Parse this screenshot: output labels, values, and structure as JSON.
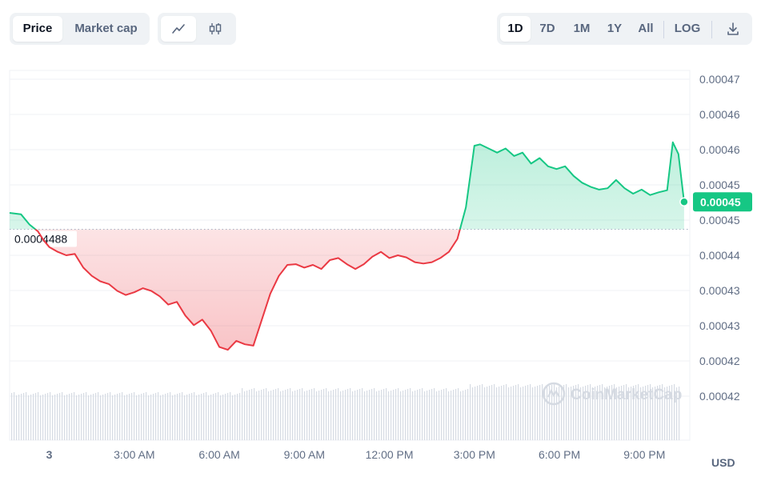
{
  "toolbar": {
    "metric_tabs": [
      {
        "label": "Price",
        "active": true
      },
      {
        "label": "Market cap",
        "active": false
      }
    ],
    "chart_type_icons": [
      {
        "icon": "line-chart-icon",
        "active": true
      },
      {
        "icon": "candlestick-icon",
        "active": false
      }
    ],
    "ranges": [
      {
        "label": "1D",
        "active": true
      },
      {
        "label": "7D",
        "active": false
      },
      {
        "label": "1M",
        "active": false
      },
      {
        "label": "1Y",
        "active": false
      },
      {
        "label": "All",
        "active": false
      }
    ],
    "log_label": "LOG",
    "download_icon": "download-icon"
  },
  "currency_label": "USD",
  "watermark": "CoinMarketCap",
  "colors": {
    "up": "#16c784",
    "down": "#ea3943",
    "grid": "#eff2f5",
    "baseline": "#a6b0c3",
    "volume": "#d6dbe3"
  },
  "chart_data": {
    "type": "line",
    "title": "",
    "xlabel": "",
    "ylabel": "",
    "x_ticks": [
      "3",
      "3:00 AM",
      "6:00 AM",
      "9:00 AM",
      "12:00 PM",
      "3:00 PM",
      "6:00 PM",
      "9:00 PM"
    ],
    "x_tick_hours": [
      0,
      3,
      6,
      9,
      12,
      15,
      18,
      21
    ],
    "x_range_hours": [
      -1.4,
      22.6
    ],
    "y_ticks": [
      "0.00047",
      "0.00046",
      "0.00046",
      "0.00045",
      "0.00045",
      "0.00044",
      "0.00043",
      "0.00043",
      "0.00042",
      "0.00042"
    ],
    "ylim": [
      0.000418,
      0.000472
    ],
    "baseline_value": 0.0004488,
    "baseline_label": "0.0004488",
    "current_price_label": "0.00045",
    "current_price": 0.0004528,
    "series": [
      {
        "x": [
          -1.4,
          -1.0,
          -0.7,
          -0.4,
          -0.2,
          0.0,
          0.3,
          0.6,
          0.9,
          1.2,
          1.5,
          1.8,
          2.1,
          2.4,
          2.7,
          3.0,
          3.3,
          3.6,
          3.9,
          4.2,
          4.5,
          4.8,
          5.1,
          5.4,
          5.7,
          6.0,
          6.3,
          6.6,
          6.9,
          7.2,
          7.5,
          7.8,
          8.1,
          8.4,
          8.7,
          9.0,
          9.3,
          9.6,
          9.9,
          10.2,
          10.5,
          10.8,
          11.1,
          11.4,
          11.7,
          12.0,
          12.3,
          12.6,
          12.9,
          13.2,
          13.5,
          13.8,
          14.1,
          14.4,
          14.7,
          14.95,
          15.0,
          15.2,
          15.5,
          15.8,
          16.1,
          16.4,
          16.7,
          17.0,
          17.3,
          17.6,
          17.9,
          18.2,
          18.5,
          18.8,
          19.1,
          19.4,
          19.7,
          20.0,
          20.3,
          20.6,
          20.9,
          21.2,
          21.5,
          21.8,
          22.0,
          22.2,
          22.4
        ],
        "y": [
          0.0004512,
          0.000451,
          0.0004495,
          0.0004485,
          0.0004472,
          0.0004462,
          0.0004455,
          0.000445,
          0.0004452,
          0.0004432,
          0.000442,
          0.0004412,
          0.0004408,
          0.0004398,
          0.0004392,
          0.0004396,
          0.0004402,
          0.0004398,
          0.000439,
          0.0004378,
          0.0004382,
          0.0004362,
          0.0004348,
          0.0004356,
          0.000434,
          0.0004316,
          0.0004312,
          0.0004325,
          0.000432,
          0.0004318,
          0.0004356,
          0.0004394,
          0.000442,
          0.0004436,
          0.0004437,
          0.0004432,
          0.0004436,
          0.000443,
          0.0004443,
          0.0004446,
          0.0004437,
          0.000443,
          0.0004437,
          0.0004448,
          0.0004455,
          0.0004446,
          0.000445,
          0.0004447,
          0.000444,
          0.0004438,
          0.000444,
          0.0004446,
          0.0004455,
          0.0004474,
          0.000452,
          0.0004595,
          0.000461,
          0.0004612,
          0.0004606,
          0.00046,
          0.0004606,
          0.0004595,
          0.00046,
          0.0004584,
          0.0004592,
          0.000458,
          0.0004576,
          0.000458,
          0.0004566,
          0.0004556,
          0.000455,
          0.0004546,
          0.0004548,
          0.000456,
          0.0004548,
          0.000454,
          0.0004546,
          0.0004538,
          0.0004542,
          0.0004545,
          0.0004615,
          0.0004598,
          0.0004528
        ]
      }
    ]
  }
}
